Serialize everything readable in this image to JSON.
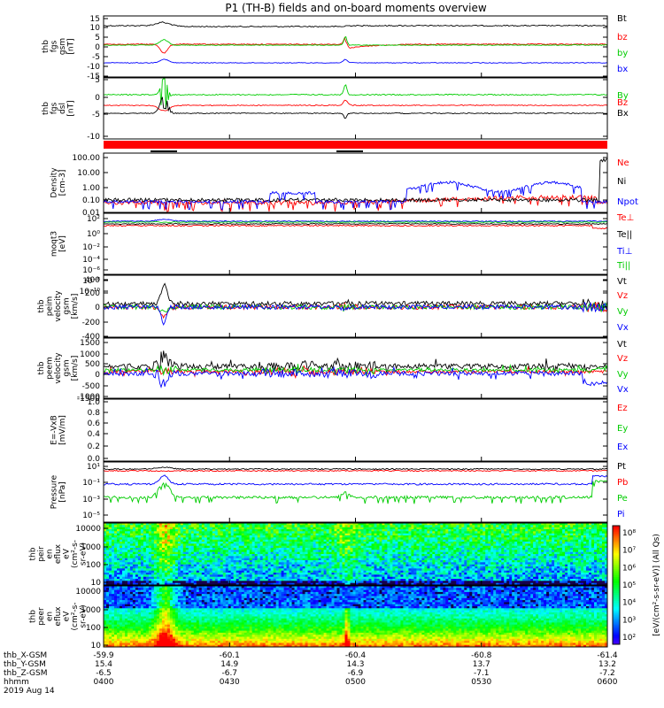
{
  "title": "P1 (TH-B) fields and on-board moments overview",
  "chart_data": {
    "type": "line",
    "panels": [
      {
        "id": "fgs-gsm",
        "ylabel": [
          "thb",
          "fgs",
          "gsm",
          "[nT]"
        ],
        "ylim": [
          -15,
          15
        ],
        "ticks": [
          "15",
          "10",
          "5",
          "0",
          "-5",
          "-10",
          "-15"
        ],
        "series": [
          {
            "name": "Bt",
            "color": "#000000"
          },
          {
            "name": "bz",
            "color": "#ff0000"
          },
          {
            "name": "by",
            "color": "#00cc00"
          },
          {
            "name": "bx",
            "color": "#0000ff"
          }
        ]
      },
      {
        "id": "fgs-dsl",
        "ylabel": [
          "thb",
          "fgs",
          "dsl",
          "[nT]"
        ],
        "ylim": [
          -12,
          5
        ],
        "ticks": [
          "5",
          "0",
          "-5",
          "-10"
        ],
        "series": [
          {
            "name": "By",
            "color": "#00cc00"
          },
          {
            "name": "Bz",
            "color": "#ff0000"
          },
          {
            "name": "Bx",
            "color": "#000000"
          }
        ]
      },
      {
        "id": "density",
        "ylabel": [
          "Density",
          "[cm-3]"
        ],
        "log": true,
        "ylim": [
          0.01,
          100
        ],
        "ticks": [
          "100.00",
          "10.00",
          "1.00",
          "0.10",
          "0.01"
        ],
        "series": [
          {
            "name": "Ne",
            "color": "#ff0000"
          },
          {
            "name": "Ni",
            "color": "#000000"
          },
          {
            "name": "Npot",
            "color": "#0000ff"
          }
        ]
      },
      {
        "id": "temperature",
        "ylabel": [
          "moqt3",
          "[eV]"
        ],
        "log": true,
        "ticks": [
          "10²",
          "10⁰",
          "10⁻²",
          "10⁻⁴",
          "10⁻⁶",
          "10⁻⁸",
          "10⁻¹⁰"
        ],
        "series": [
          {
            "name": "Te⊥",
            "color": "#ff0000"
          },
          {
            "name": "Te||",
            "color": "#000000"
          },
          {
            "name": "Ti⊥",
            "color": "#0000ff"
          },
          {
            "name": "Ti||",
            "color": "#00cc00"
          }
        ]
      },
      {
        "id": "peim-velocity",
        "ylabel": [
          "thb",
          "peim",
          "velocity",
          "gsm",
          "[km/s]"
        ],
        "ylim": [
          -400,
          400
        ],
        "ticks": [
          "400",
          "200",
          "0",
          "-200",
          "-400"
        ],
        "series": [
          {
            "name": "Vt",
            "color": "#000000"
          },
          {
            "name": "Vz",
            "color": "#ff0000"
          },
          {
            "name": "Vy",
            "color": "#00cc00"
          },
          {
            "name": "Vx",
            "color": "#0000ff"
          }
        ]
      },
      {
        "id": "peem-velocity",
        "ylabel": [
          "thb",
          "peem",
          "velocity",
          "gsm",
          "[km/s]"
        ],
        "ylim": [
          -1500,
          1500
        ],
        "ticks": [
          "1500",
          "1000",
          "500",
          "0",
          "-500",
          "-1000",
          "-1500"
        ],
        "series": [
          {
            "name": "Vt",
            "color": "#000000"
          },
          {
            "name": "Vz",
            "color": "#ff0000"
          },
          {
            "name": "Vy",
            "color": "#00cc00"
          },
          {
            "name": "Vx",
            "color": "#0000ff"
          }
        ]
      },
      {
        "id": "efield",
        "ylabel": [
          "E=-VxB",
          "[mV/m]"
        ],
        "ylim": [
          0,
          1
        ],
        "ticks": [
          "1.0",
          "0.8",
          "0.6",
          "0.4",
          "0.2",
          "0.0"
        ],
        "series": [
          {
            "name": "Ez",
            "color": "#ff0000"
          },
          {
            "name": "Ey",
            "color": "#00cc00"
          },
          {
            "name": "Ex",
            "color": "#0000ff"
          }
        ]
      },
      {
        "id": "pressure",
        "ylabel": [
          "Pressure",
          "[nPa]"
        ],
        "log": true,
        "ticks": [
          "10¹",
          "10⁻¹",
          "10⁻³",
          "10⁻⁵"
        ],
        "series": [
          {
            "name": "Pt",
            "color": "#000000"
          },
          {
            "name": "Pb",
            "color": "#ff0000"
          },
          {
            "name": "Pe",
            "color": "#00cc00"
          },
          {
            "name": "Pi",
            "color": "#0000ff"
          }
        ]
      },
      {
        "id": "peir-spec",
        "type": "heatmap",
        "ylabel": [
          "thb",
          "peir",
          "en",
          "eflux",
          "eV",
          "(cm²-s-",
          "sr-eV)"
        ],
        "ticks": [
          "10000",
          "1000",
          "100",
          "10"
        ]
      },
      {
        "id": "peer-spec",
        "type": "heatmap",
        "ylabel": [
          "thb",
          "peer",
          "en",
          "eflux",
          "eV",
          "(cm²-s-",
          "sr-eV)"
        ],
        "ticks": [
          "10000",
          "1000",
          "100",
          "10"
        ]
      }
    ],
    "colorbar": {
      "label": "[eV/(cm²-s-sr-eV)] (All Qs)",
      "ticks": [
        "10⁸",
        "10⁷",
        "10⁶",
        "10⁵",
        "10⁴",
        "10³",
        "10²"
      ]
    },
    "x_axis": {
      "rows": [
        {
          "name": "thb_X-GSM",
          "values": [
            "-59.9",
            "-60.1",
            "-60.4",
            "-60.8",
            "-61.4"
          ]
        },
        {
          "name": "thb_Y-GSM",
          "values": [
            "15.4",
            "14.9",
            "14.3",
            "13.7",
            "13.2"
          ]
        },
        {
          "name": "thb_Z-GSM",
          "values": [
            "-6.5",
            "-6.7",
            "-6.9",
            "-7.1",
            "-7.2"
          ]
        },
        {
          "name": "hhmm",
          "values": [
            "0400",
            "0430",
            "0500",
            "0530",
            "0600"
          ]
        }
      ],
      "date": "2019 Aug 14"
    }
  }
}
